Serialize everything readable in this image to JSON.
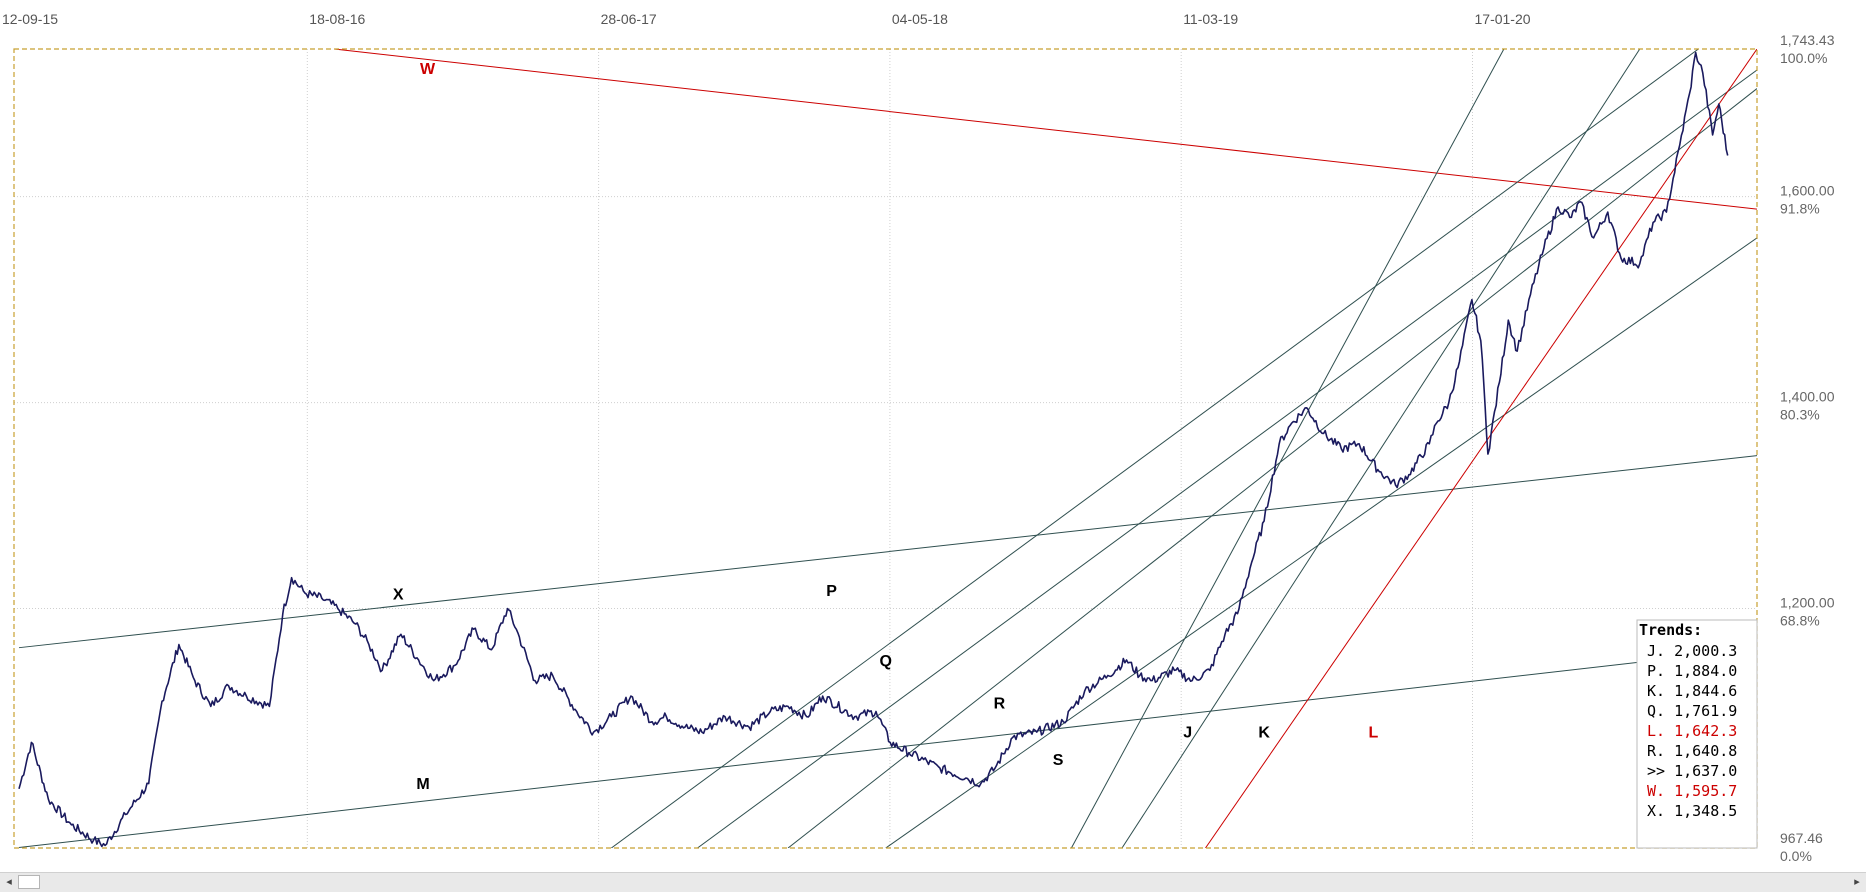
{
  "chart_data": {
    "type": "line",
    "x_ticks": [
      "12-09-15",
      "18-08-16",
      "28-06-17",
      "04-05-18",
      "11-03-19",
      "17-01-20"
    ],
    "y_ticks": [
      {
        "value": 1743.43,
        "label": "1,743.43",
        "pct": "100.0%"
      },
      {
        "value": 1600,
        "label": "1,600.00",
        "pct": "91.8%"
      },
      {
        "value": 1400,
        "label": "1,400.00",
        "pct": "80.3%"
      },
      {
        "value": 1200,
        "label": "1,200.00",
        "pct": "68.8%"
      },
      {
        "value": 967.46,
        "label": "967.46",
        "pct": "0.0%"
      }
    ],
    "ylim": [
      967.46,
      1743.43
    ],
    "grid": true,
    "series": [
      {
        "color": "#1a1a5e",
        "points": [
          [
            "2015-09-12",
            1025
          ],
          [
            "2015-09-26",
            1070
          ],
          [
            "2015-10-15",
            1015
          ],
          [
            "2015-11-10",
            990
          ],
          [
            "2015-12-05",
            975
          ],
          [
            "2015-12-18",
            970
          ],
          [
            "2016-01-10",
            1000
          ],
          [
            "2016-02-05",
            1030
          ],
          [
            "2016-02-20",
            1110
          ],
          [
            "2016-03-10",
            1165
          ],
          [
            "2016-03-28",
            1130
          ],
          [
            "2016-04-15",
            1105
          ],
          [
            "2016-05-05",
            1125
          ],
          [
            "2016-05-25",
            1115
          ],
          [
            "2016-06-20",
            1105
          ],
          [
            "2016-07-05",
            1195
          ],
          [
            "2016-07-15",
            1230
          ],
          [
            "2016-07-30",
            1215
          ],
          [
            "2016-08-18",
            1210
          ],
          [
            "2016-09-05",
            1200
          ],
          [
            "2016-09-25",
            1185
          ],
          [
            "2016-10-10",
            1165
          ],
          [
            "2016-10-25",
            1140
          ],
          [
            "2016-11-15",
            1175
          ],
          [
            "2016-12-05",
            1150
          ],
          [
            "2016-12-22",
            1130
          ],
          [
            "2017-01-15",
            1145
          ],
          [
            "2017-02-05",
            1180
          ],
          [
            "2017-02-25",
            1160
          ],
          [
            "2017-03-15",
            1200
          ],
          [
            "2017-03-25",
            1180
          ],
          [
            "2017-04-15",
            1130
          ],
          [
            "2017-05-05",
            1135
          ],
          [
            "2017-06-01",
            1100
          ],
          [
            "2017-06-20",
            1080
          ],
          [
            "2017-07-10",
            1095
          ],
          [
            "2017-08-01",
            1115
          ],
          [
            "2017-08-25",
            1090
          ],
          [
            "2017-09-10",
            1095
          ],
          [
            "2017-10-01",
            1085
          ],
          [
            "2017-10-20",
            1080
          ],
          [
            "2017-11-15",
            1095
          ],
          [
            "2017-12-12",
            1085
          ],
          [
            "2018-01-05",
            1100
          ],
          [
            "2018-01-25",
            1105
          ],
          [
            "2018-02-15",
            1095
          ],
          [
            "2018-03-05",
            1115
          ],
          [
            "2018-04-10",
            1095
          ],
          [
            "2018-05-04",
            1100
          ],
          [
            "2018-05-20",
            1070
          ],
          [
            "2018-06-10",
            1060
          ],
          [
            "2018-07-15",
            1045
          ],
          [
            "2018-08-15",
            1035
          ],
          [
            "2018-08-30",
            1030
          ],
          [
            "2018-09-15",
            1045
          ],
          [
            "2018-10-05",
            1075
          ],
          [
            "2018-11-01",
            1080
          ],
          [
            "2018-12-01",
            1090
          ],
          [
            "2018-12-25",
            1120
          ],
          [
            "2019-01-20",
            1135
          ],
          [
            "2019-02-10",
            1150
          ],
          [
            "2019-02-25",
            1135
          ],
          [
            "2019-03-11",
            1130
          ],
          [
            "2019-04-05",
            1140
          ],
          [
            "2019-04-25",
            1130
          ],
          [
            "2019-05-15",
            1140
          ],
          [
            "2019-06-01",
            1175
          ],
          [
            "2019-06-15",
            1195
          ],
          [
            "2019-07-01",
            1245
          ],
          [
            "2019-07-15",
            1285
          ],
          [
            "2019-08-01",
            1360
          ],
          [
            "2019-08-15",
            1380
          ],
          [
            "2019-09-01",
            1395
          ],
          [
            "2019-09-20",
            1370
          ],
          [
            "2019-10-10",
            1355
          ],
          [
            "2019-10-30",
            1360
          ],
          [
            "2019-11-20",
            1335
          ],
          [
            "2019-12-10",
            1320
          ],
          [
            "2019-12-25",
            1330
          ],
          [
            "2020-01-17",
            1360
          ],
          [
            "2020-01-25",
            1380
          ],
          [
            "2020-02-08",
            1400
          ],
          [
            "2020-02-20",
            1440
          ],
          [
            "2020-03-05",
            1500
          ],
          [
            "2020-03-15",
            1460
          ],
          [
            "2020-03-20",
            1395
          ],
          [
            "2020-03-23",
            1350
          ],
          [
            "2020-04-05",
            1420
          ],
          [
            "2020-04-15",
            1480
          ],
          [
            "2020-04-25",
            1450
          ],
          [
            "2020-05-10",
            1505
          ],
          [
            "2020-05-25",
            1550
          ],
          [
            "2020-06-10",
            1590
          ],
          [
            "2020-06-25",
            1580
          ],
          [
            "2020-07-05",
            1595
          ],
          [
            "2020-07-20",
            1560
          ],
          [
            "2020-08-05",
            1585
          ],
          [
            "2020-08-20",
            1540
          ],
          [
            "2020-09-10",
            1535
          ],
          [
            "2020-09-25",
            1575
          ],
          [
            "2020-10-10",
            1585
          ],
          [
            "2020-10-25",
            1650
          ],
          [
            "2020-11-05",
            1700
          ],
          [
            "2020-11-12",
            1740
          ],
          [
            "2020-11-20",
            1720
          ],
          [
            "2020-12-01",
            1660
          ],
          [
            "2020-12-08",
            1690
          ],
          [
            "2020-12-18",
            1640
          ]
        ]
      }
    ],
    "trendlines": [
      {
        "label": "W",
        "color": "#cc0000",
        "label_color": "#cc0000",
        "from": [
          "2016-09-01",
          1743.43
        ],
        "to": [
          "2021-01-20",
          1587.9
        ],
        "label_at": [
          "2016-12-15",
          1719
        ]
      },
      {
        "label": "X",
        "color": "#2f4f4f",
        "label_color": "#000000",
        "from": [
          "2015-09-12",
          1162
        ],
        "to": [
          "2021-01-20",
          1348.5
        ],
        "label_at": [
          "2016-11-12",
          1209
        ]
      },
      {
        "label": "M",
        "color": "#2f4f4f",
        "label_color": "#000000",
        "from": [
          "2015-09-12",
          968
        ],
        "to": [
          "2020-11-20",
          1155
        ],
        "label_at": [
          "2016-12-10",
          1025
        ]
      },
      {
        "label": "P",
        "color": "#2f4f4f",
        "label_color": "#000000",
        "from": [
          "2017-07-10",
          967.46
        ],
        "to": [
          "2020-11-15",
          1743.43
        ],
        "label_at": [
          "2018-03-15",
          1212
        ]
      },
      {
        "label": "Q",
        "color": "#2f4f4f",
        "label_color": "#000000",
        "from": [
          "2017-10-15",
          967.46
        ],
        "to": [
          "2021-01-20",
          1723
        ],
        "label_at": [
          "2018-05-15",
          1144
        ]
      },
      {
        "label": "R",
        "color": "#2f4f4f",
        "label_color": "#000000",
        "from": [
          "2018-01-25",
          967.46
        ],
        "to": [
          "2021-01-20",
          1705
        ],
        "label_at": [
          "2018-09-20",
          1103
        ]
      },
      {
        "label": "S",
        "color": "#2f4f4f",
        "label_color": "#000000",
        "from": [
          "2018-05-15",
          967.46
        ],
        "to": [
          "2021-01-20",
          1560
        ],
        "label_at": [
          "2018-11-25",
          1048
        ]
      },
      {
        "label": "J",
        "color": "#2f4f4f",
        "label_color": "#000000",
        "from": [
          "2018-12-10",
          967.46
        ],
        "to": [
          "2020-04-10",
          1743.43
        ],
        "label_at": [
          "2019-04-20",
          1075
        ]
      },
      {
        "label": "K",
        "color": "#2f4f4f",
        "label_color": "#000000",
        "from": [
          "2019-02-05",
          967.46
        ],
        "to": [
          "2020-09-10",
          1743.43
        ],
        "label_at": [
          "2019-07-15",
          1075
        ]
      },
      {
        "label": "L",
        "color": "#cc0000",
        "label_color": "#cc0000",
        "from": [
          "2019-05-10",
          967.46
        ],
        "to": [
          "2021-01-20",
          1743.43
        ],
        "label_at": [
          "2019-11-15",
          1075
        ]
      }
    ],
    "trends_legend": {
      "title": "Trends:",
      "entries": [
        {
          "text": "J. 2,000.3",
          "color": "#000000"
        },
        {
          "text": "P. 1,884.0",
          "color": "#000000"
        },
        {
          "text": "K. 1,844.6",
          "color": "#000000"
        },
        {
          "text": "Q. 1,761.9",
          "color": "#000000"
        },
        {
          "text": "L. 1,642.3",
          "color": "#cc0000"
        },
        {
          "text": "R. 1,640.8",
          "color": "#000000"
        },
        {
          "text": ">> 1,637.0",
          "color": "#000000"
        },
        {
          "text": "W. 1,595.7",
          "color": "#cc0000"
        },
        {
          "text": "X. 1,348.5",
          "color": "#000000"
        }
      ]
    }
  },
  "colors": {
    "frame": "#c8a031",
    "grid": "#cfcfcf",
    "price_line": "#1a1a5e"
  },
  "scrollbar": {
    "left_arrow": "◂",
    "right_arrow": "▸"
  }
}
